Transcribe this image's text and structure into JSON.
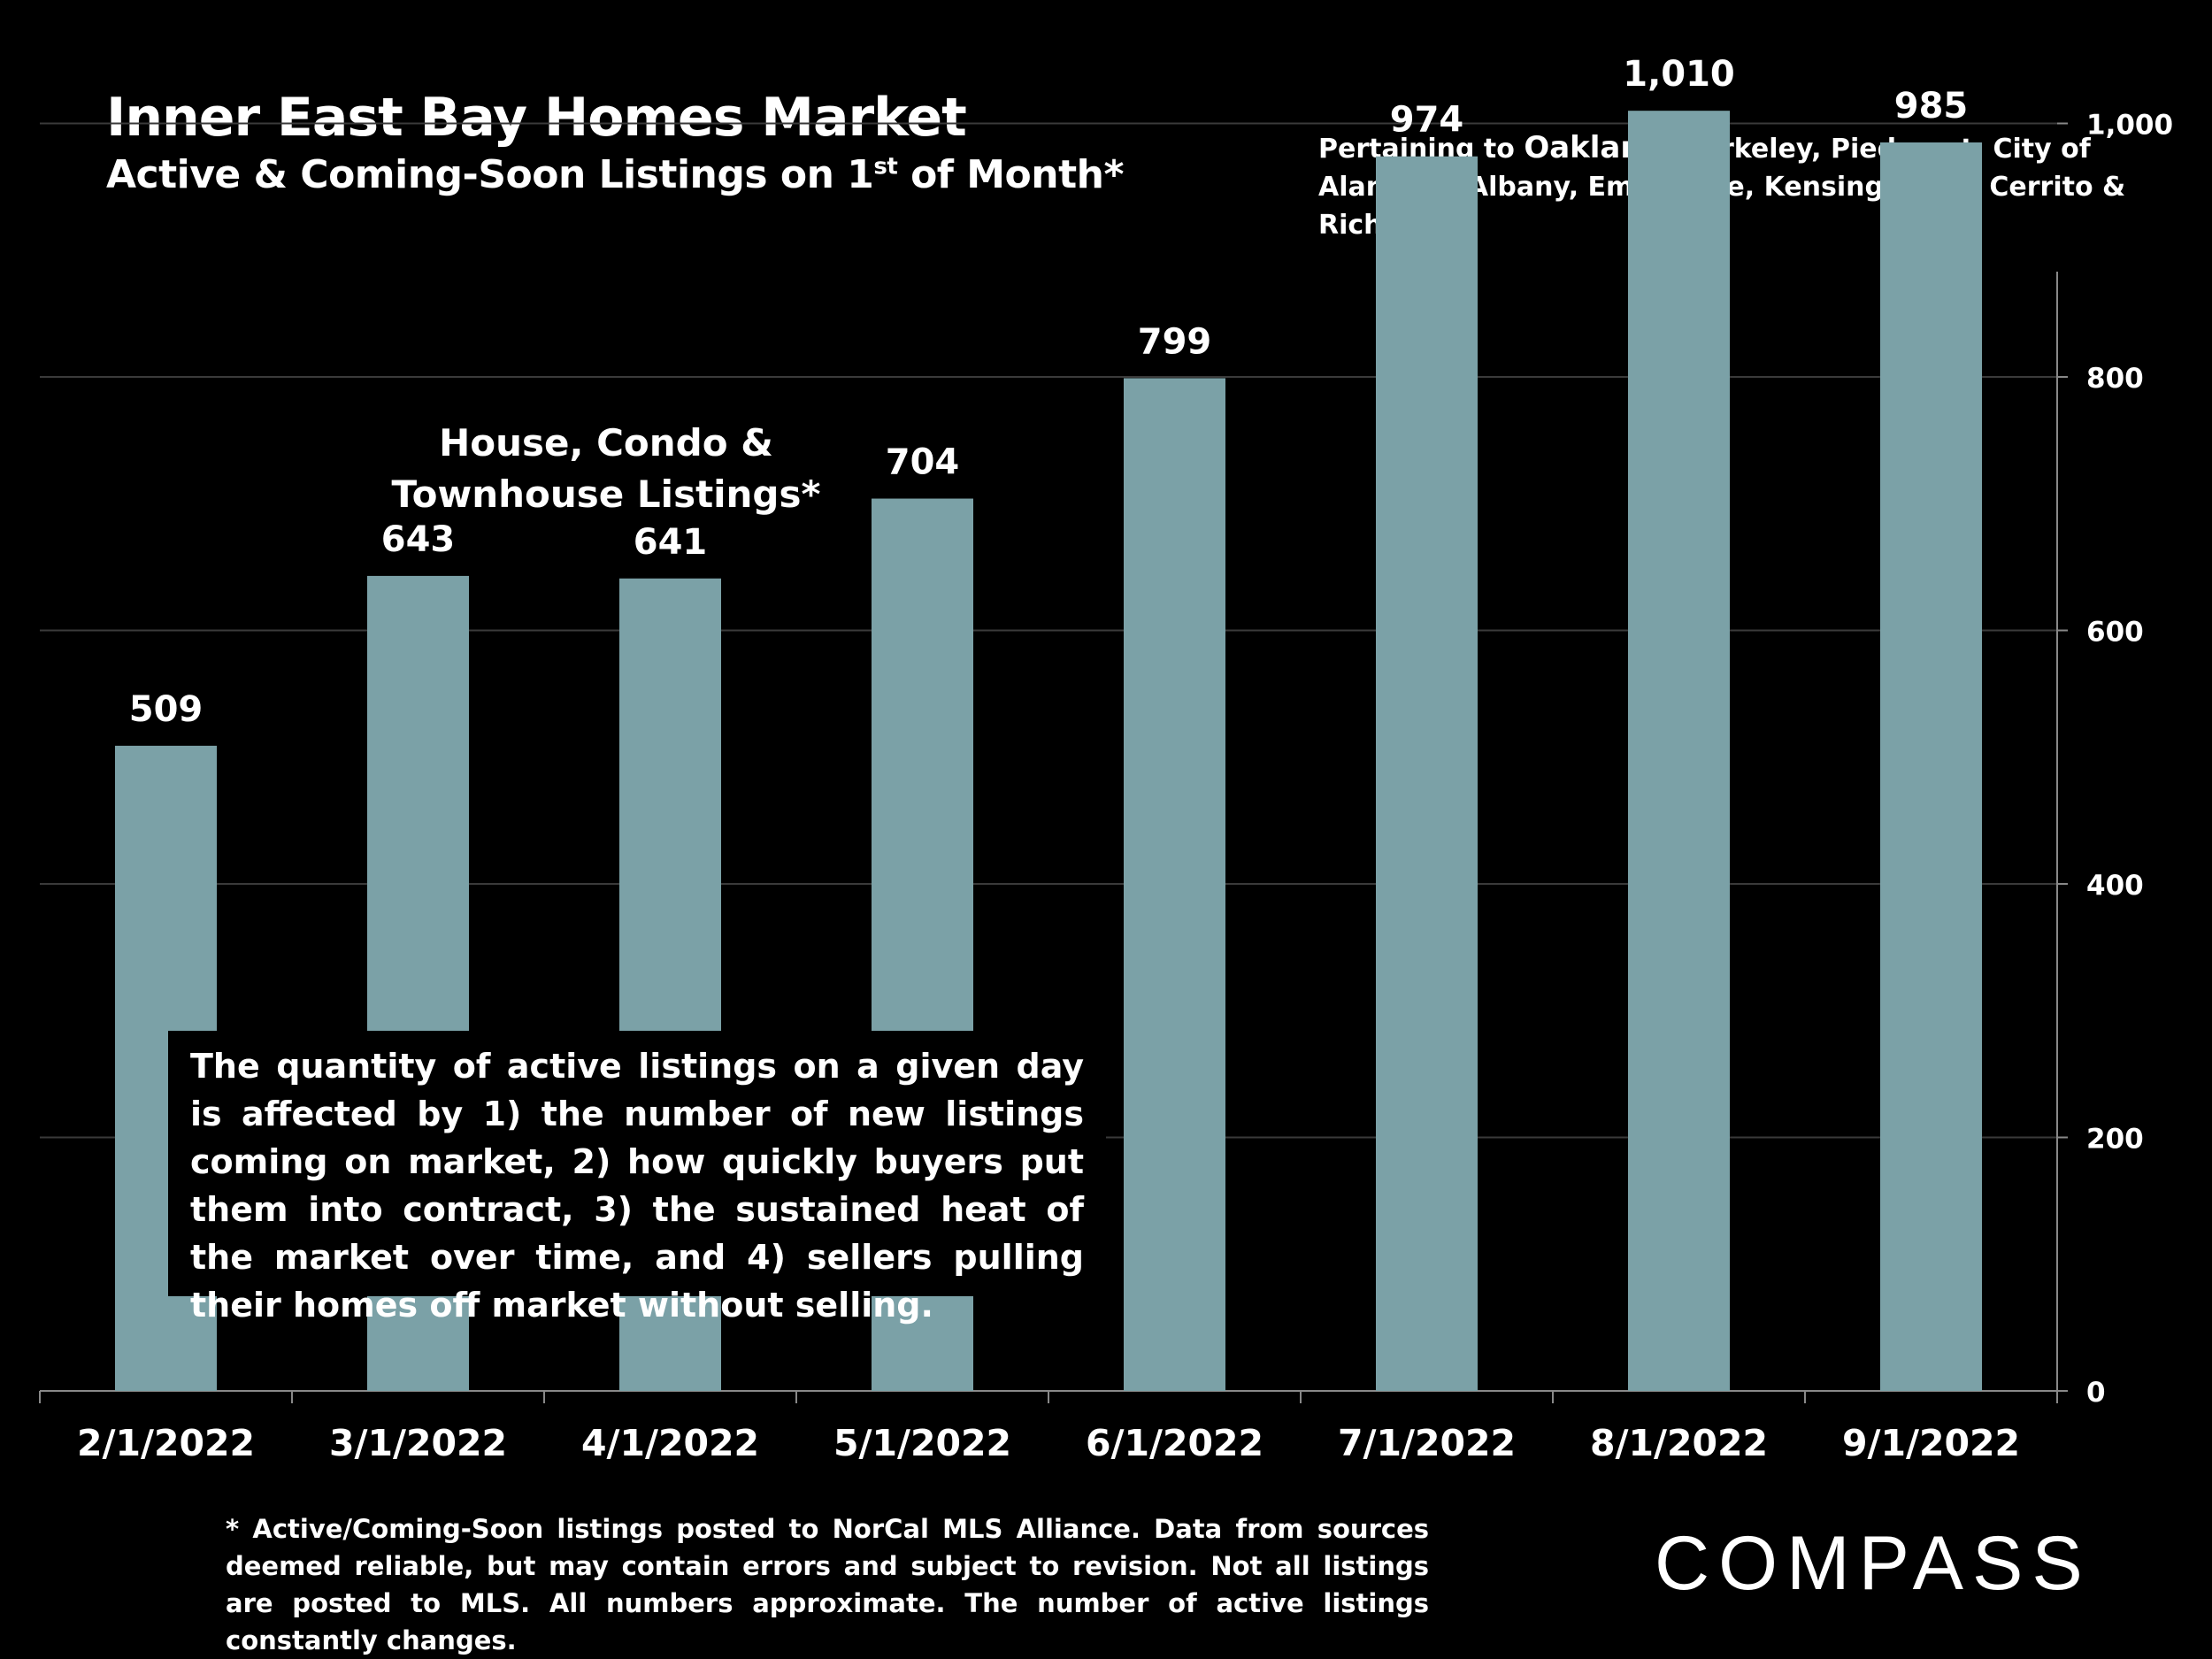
{
  "header": {
    "title": "Inner East Bay Homes Market",
    "subtitle_pre": "Active & Coming-Soon Listings on 1",
    "subtitle_sup": "st",
    "subtitle_post": " of Month*"
  },
  "region_note": {
    "prefix": "Pertaining to ",
    "highlight": "Oakland",
    "rest": ", Berkeley, Piedmont, City of Alameda, Albany, Emeryville, Kensington, El Cerrito & Richmond."
  },
  "series_label": "House, Condo & Townhouse Listings*",
  "annotation": "The quantity of active listings on a given day is affected by 1) the number of new listings coming on market, 2) how quickly buyers put them into contract, 3) the sustained heat of the market over time, and 4) sellers pulling their homes off market without selling.",
  "footnote": "* Active/Coming-Soon listings posted to NorCal MLS Alliance.  Data from sources deemed reliable, but may contain errors and subject to revision.  Not all listings are posted to MLS. All numbers approximate. The number of active listings constantly changes.",
  "logo_text": "COMPASS",
  "colors": {
    "background": "#000000",
    "bar": "#7ba1a7",
    "gridline": "#3a3a3a",
    "text": "#ffffff"
  },
  "chart_data": {
    "type": "bar",
    "title": "House, Condo & Townhouse Listings*",
    "categories": [
      "2/1/2022",
      "3/1/2022",
      "4/1/2022",
      "5/1/2022",
      "6/1/2022",
      "7/1/2022",
      "8/1/2022",
      "9/1/2022"
    ],
    "values": [
      509,
      643,
      641,
      704,
      799,
      974,
      1010,
      985
    ],
    "value_labels": [
      "509",
      "643",
      "641",
      "704",
      "799",
      "974",
      "1,010",
      "985"
    ],
    "y_ticks": [
      0,
      200,
      400,
      600,
      800,
      1000
    ],
    "y_tick_labels": [
      "0",
      "200",
      "400",
      "600",
      "800",
      "1,000"
    ],
    "ylim": [
      0,
      1100
    ],
    "y_axis_side": "right",
    "grid": true,
    "xlabel": "",
    "ylabel": ""
  }
}
